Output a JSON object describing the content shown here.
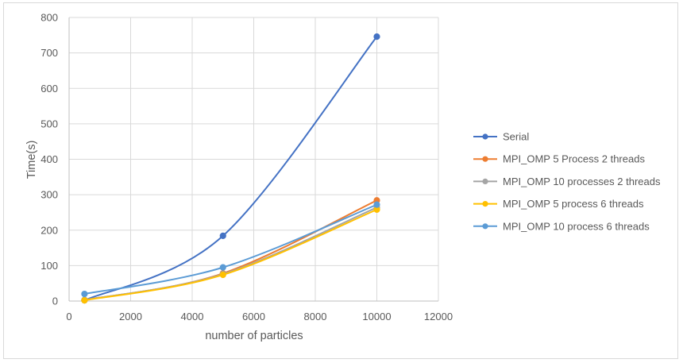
{
  "chart_data": {
    "type": "line",
    "title": "",
    "xlabel": "number of particles",
    "ylabel": "Time(s)",
    "xlim": [
      0,
      12000
    ],
    "ylim": [
      0,
      800
    ],
    "x_ticks": [
      0,
      2000,
      4000,
      6000,
      8000,
      10000,
      12000
    ],
    "y_ticks": [
      0,
      100,
      200,
      300,
      400,
      500,
      600,
      700,
      800
    ],
    "x_tick_labels": [
      "0",
      "2000",
      "4000",
      "6000",
      "8000",
      "10000",
      "12000"
    ],
    "y_tick_labels": [
      "0",
      "100",
      "200",
      "300",
      "400",
      "500",
      "600",
      "700",
      "800"
    ],
    "grid": true,
    "smooth": true,
    "legend_position": "right",
    "x": [
      500,
      5000,
      10000
    ],
    "series": [
      {
        "name": "Serial",
        "values": [
          2,
          184,
          746
        ],
        "color": "#4472c4"
      },
      {
        "name": "MPI_OMP 5 Process 2 threads",
        "values": [
          3,
          78,
          284
        ],
        "color": "#ed7d31"
      },
      {
        "name": "MPI_OMP 10 processes 2 threads",
        "values": [
          3,
          76,
          264
        ],
        "color": "#a5a5a5"
      },
      {
        "name": "MPI_OMP 5 process 6 threads",
        "values": [
          2,
          74,
          258
        ],
        "color": "#ffc000"
      },
      {
        "name": "MPI_OMP 10 process 6 threads",
        "values": [
          20,
          95,
          272
        ],
        "color": "#5b9bd5"
      }
    ]
  }
}
